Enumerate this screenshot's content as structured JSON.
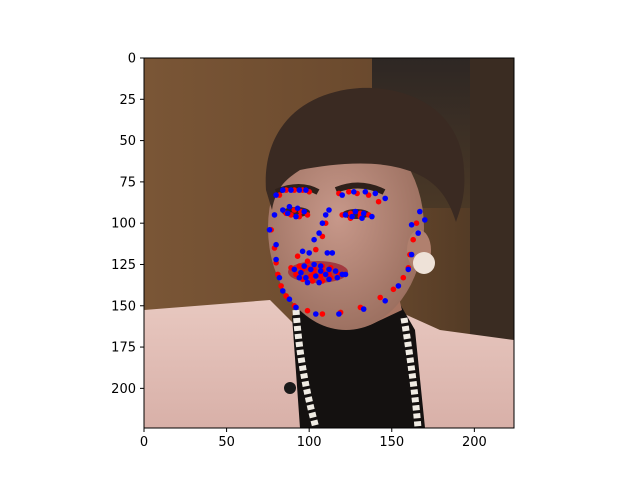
{
  "chart_data": {
    "type": "scatter",
    "title": "",
    "xlabel": "",
    "ylabel": "",
    "xlim": [
      0,
      224
    ],
    "ylim": [
      224,
      0
    ],
    "x_ticks": [
      0,
      50,
      100,
      150,
      200
    ],
    "y_ticks": [
      0,
      25,
      50,
      75,
      100,
      125,
      150,
      175,
      200
    ],
    "x_tick_labels": [
      "0",
      "50",
      "100",
      "150",
      "200"
    ],
    "y_tick_labels": [
      "0",
      "25",
      "50",
      "75",
      "100",
      "125",
      "150",
      "175",
      "200"
    ],
    "grid": false,
    "background_image": "face-photo",
    "series": [
      {
        "color": "#ff0000",
        "points": [
          [
            77,
            104
          ],
          [
            79,
            115
          ],
          [
            80,
            124
          ],
          [
            81,
            131
          ],
          [
            83,
            138
          ],
          [
            86,
            144
          ],
          [
            91,
            150
          ],
          [
            99,
            153
          ],
          [
            108,
            155
          ],
          [
            119,
            154
          ],
          [
            131,
            151
          ],
          [
            143,
            145
          ],
          [
            151,
            140
          ],
          [
            157,
            133
          ],
          [
            160,
            127
          ],
          [
            161,
            119
          ],
          [
            163,
            110
          ],
          [
            165,
            100
          ],
          [
            82,
            83
          ],
          [
            86,
            80
          ],
          [
            91,
            80
          ],
          [
            96,
            80
          ],
          [
            100,
            81
          ],
          [
            118,
            82
          ],
          [
            124,
            81
          ],
          [
            129,
            82
          ],
          [
            136,
            83
          ],
          [
            142,
            87
          ],
          [
            93,
            120
          ],
          [
            99,
            123
          ],
          [
            104,
            116
          ],
          [
            108,
            108
          ],
          [
            110,
            100
          ],
          [
            86,
            94
          ],
          [
            91,
            92
          ],
          [
            95,
            93
          ],
          [
            99,
            95
          ],
          [
            94,
            96
          ],
          [
            89,
            95
          ],
          [
            120,
            95
          ],
          [
            125,
            94
          ],
          [
            131,
            94
          ],
          [
            136,
            95
          ],
          [
            131,
            96
          ],
          [
            125,
            97
          ],
          [
            89,
            127
          ],
          [
            94,
            126
          ],
          [
            99,
            127
          ],
          [
            103,
            128
          ],
          [
            108,
            126
          ],
          [
            113,
            127
          ],
          [
            118,
            131
          ],
          [
            113,
            133
          ],
          [
            108,
            135
          ],
          [
            102,
            135
          ],
          [
            96,
            134
          ],
          [
            92,
            131
          ],
          [
            96,
            128
          ],
          [
            103,
            130
          ],
          [
            108,
            129
          ],
          [
            112,
            131
          ],
          [
            107,
            132
          ],
          [
            101,
            132
          ]
        ]
      },
      {
        "color": "#0000ff",
        "points": [
          [
            76,
            104
          ],
          [
            80,
            113
          ],
          [
            80,
            122
          ],
          [
            82,
            133
          ],
          [
            84,
            141
          ],
          [
            88,
            146
          ],
          [
            92,
            151
          ],
          [
            104,
            155
          ],
          [
            118,
            155
          ],
          [
            133,
            152
          ],
          [
            146,
            147
          ],
          [
            154,
            138
          ],
          [
            160,
            128
          ],
          [
            162,
            119
          ],
          [
            166,
            106
          ],
          [
            170,
            98
          ],
          [
            167,
            93
          ],
          [
            80,
            83
          ],
          [
            84,
            80
          ],
          [
            89,
            80
          ],
          [
            94,
            80
          ],
          [
            98,
            80
          ],
          [
            120,
            83
          ],
          [
            127,
            81
          ],
          [
            134,
            81
          ],
          [
            140,
            82
          ],
          [
            146,
            85
          ],
          [
            96,
            117
          ],
          [
            100,
            118
          ],
          [
            103,
            110
          ],
          [
            106,
            106
          ],
          [
            108,
            100
          ],
          [
            110,
            95
          ],
          [
            112,
            92
          ],
          [
            84,
            92
          ],
          [
            88,
            90
          ],
          [
            93,
            91
          ],
          [
            97,
            93
          ],
          [
            92,
            96
          ],
          [
            87,
            94
          ],
          [
            79,
            95
          ],
          [
            122,
            95
          ],
          [
            128,
            93
          ],
          [
            133,
            94
          ],
          [
            138,
            96
          ],
          [
            132,
            97
          ],
          [
            126,
            96
          ],
          [
            91,
            128
          ],
          [
            97,
            126
          ],
          [
            103,
            125
          ],
          [
            107,
            126
          ],
          [
            112,
            128
          ],
          [
            116,
            129
          ],
          [
            117,
            133
          ],
          [
            112,
            134
          ],
          [
            106,
            136
          ],
          [
            99,
            136
          ],
          [
            94,
            133
          ],
          [
            95,
            130
          ],
          [
            101,
            128
          ],
          [
            107,
            129
          ],
          [
            110,
            131
          ],
          [
            104,
            132
          ],
          [
            98,
            133
          ],
          [
            111,
            118
          ],
          [
            114,
            118
          ],
          [
            120,
            131
          ],
          [
            122,
            131
          ],
          [
            162,
            101
          ]
        ]
      }
    ]
  }
}
